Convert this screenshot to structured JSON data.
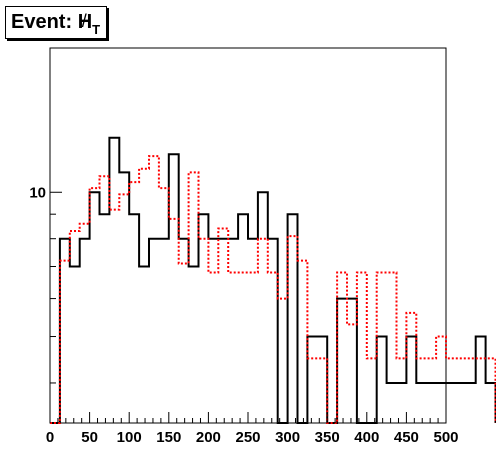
{
  "title": {
    "prefix": "Event: ",
    "symbol": "H",
    "slash": "/",
    "subscript": "T"
  },
  "chart_data": {
    "type": "histogram",
    "title": "Event: H/T",
    "xlabel": "",
    "ylabel": "",
    "xlim": [
      0,
      500
    ],
    "ylim": [
      3.3,
      20
    ],
    "log_y": true,
    "grid": false,
    "bin_width": 12.5,
    "x_ticks": [
      "0",
      "50",
      "100",
      "150",
      "200",
      "250",
      "300",
      "350",
      "400",
      "450",
      "500"
    ],
    "y_ticks": [
      "10"
    ],
    "series": [
      {
        "color": "#000000",
        "style": "solid",
        "values": [
          0,
          8,
          7,
          8,
          10,
          9,
          13,
          11,
          9,
          7,
          8,
          8,
          12,
          8,
          7,
          9,
          8,
          8,
          8,
          9,
          8,
          10,
          8,
          0,
          9,
          0,
          5,
          5,
          0,
          6,
          6,
          0,
          0,
          5,
          4,
          4,
          5,
          4,
          4,
          4,
          4,
          4,
          4,
          5,
          4
        ]
      },
      {
        "color": "#ff0000",
        "style": "dashed",
        "values": [
          0,
          7.2,
          8.3,
          8.6,
          10.2,
          10.8,
          9.2,
          9.9,
          10.5,
          11.2,
          11.9,
          10.2,
          8.8,
          7.1,
          11.0,
          8.0,
          6.8,
          8.4,
          6.8,
          6.8,
          6.8,
          8.0,
          6.8,
          6.0,
          8.1,
          7.2,
          4.5,
          4.5,
          0,
          6.8,
          5.3,
          6.8,
          4.5,
          6.8,
          6.8,
          4.5,
          5.6,
          4.5,
          4.5,
          5.0,
          4.5,
          4.5,
          4.5,
          4.5,
          4.5
        ]
      }
    ]
  }
}
